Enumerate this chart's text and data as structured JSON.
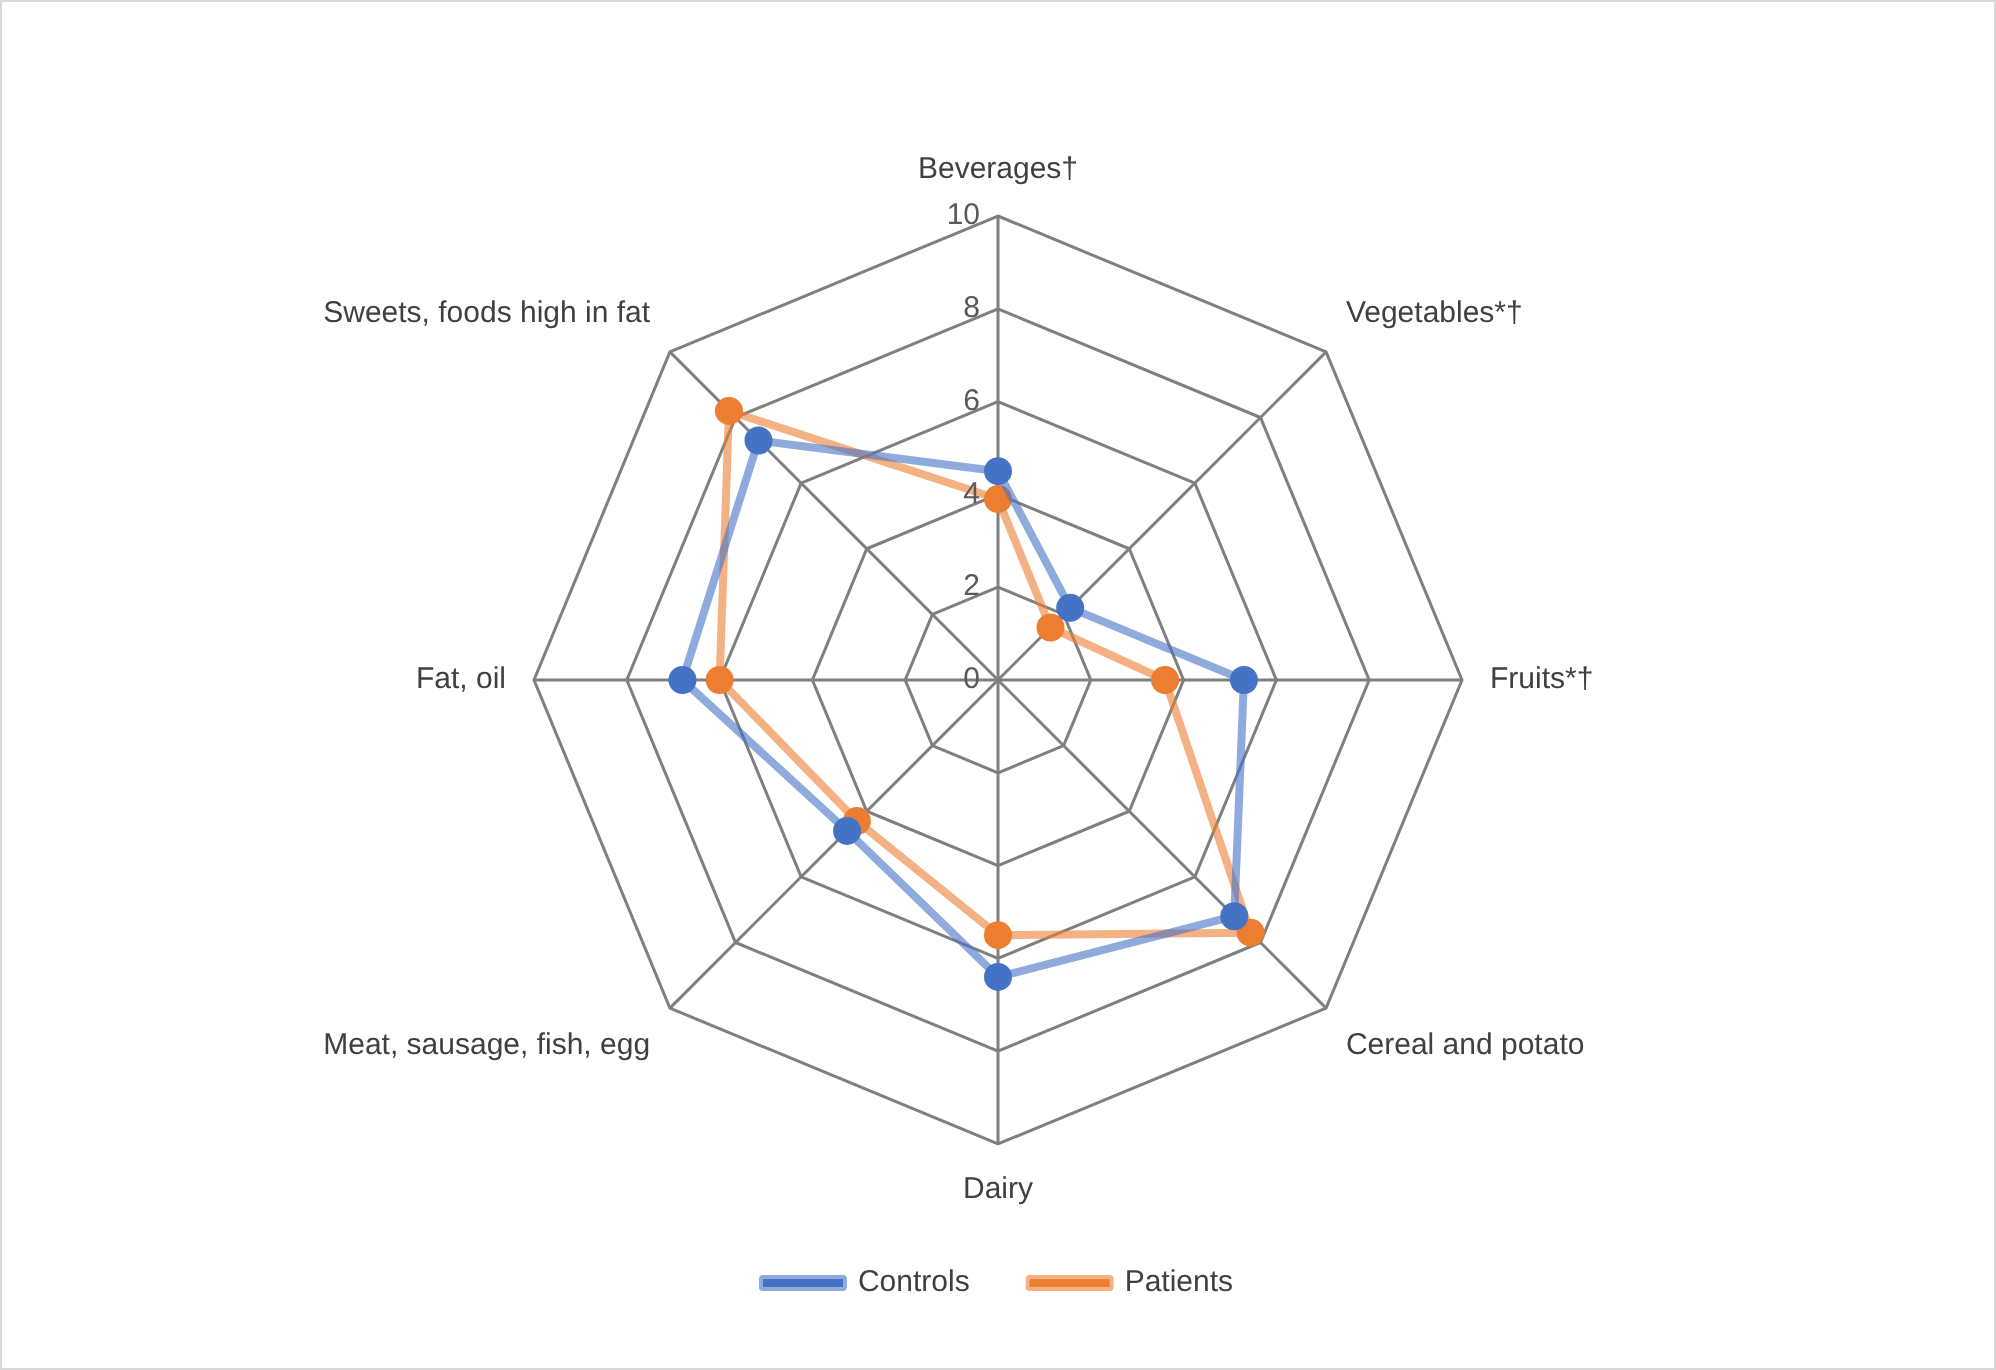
{
  "chart_data": {
    "type": "radar",
    "categories": [
      "Beverages†",
      "Vegetables*†",
      "Fruits*†",
      "Cereal and potato",
      "Dairy",
      "Meat, sausage, fish, egg",
      "Fat, oil",
      "Sweets, foods high in fat"
    ],
    "series": [
      {
        "name": "Controls",
        "color": "#4472c4",
        "values": [
          4.5,
          2.2,
          5.3,
          7.2,
          6.4,
          4.6,
          6.8,
          7.3
        ]
      },
      {
        "name": "Patients",
        "color": "#ed7d31",
        "values": [
          3.9,
          1.6,
          3.6,
          7.7,
          5.5,
          4.3,
          6.0,
          8.2
        ]
      }
    ],
    "ylim": [
      0,
      10
    ],
    "yticks": [
      0,
      2,
      4,
      6,
      8,
      10
    ],
    "grid": true,
    "legend": "bottom",
    "marker": "circle",
    "line_style": "solid"
  }
}
